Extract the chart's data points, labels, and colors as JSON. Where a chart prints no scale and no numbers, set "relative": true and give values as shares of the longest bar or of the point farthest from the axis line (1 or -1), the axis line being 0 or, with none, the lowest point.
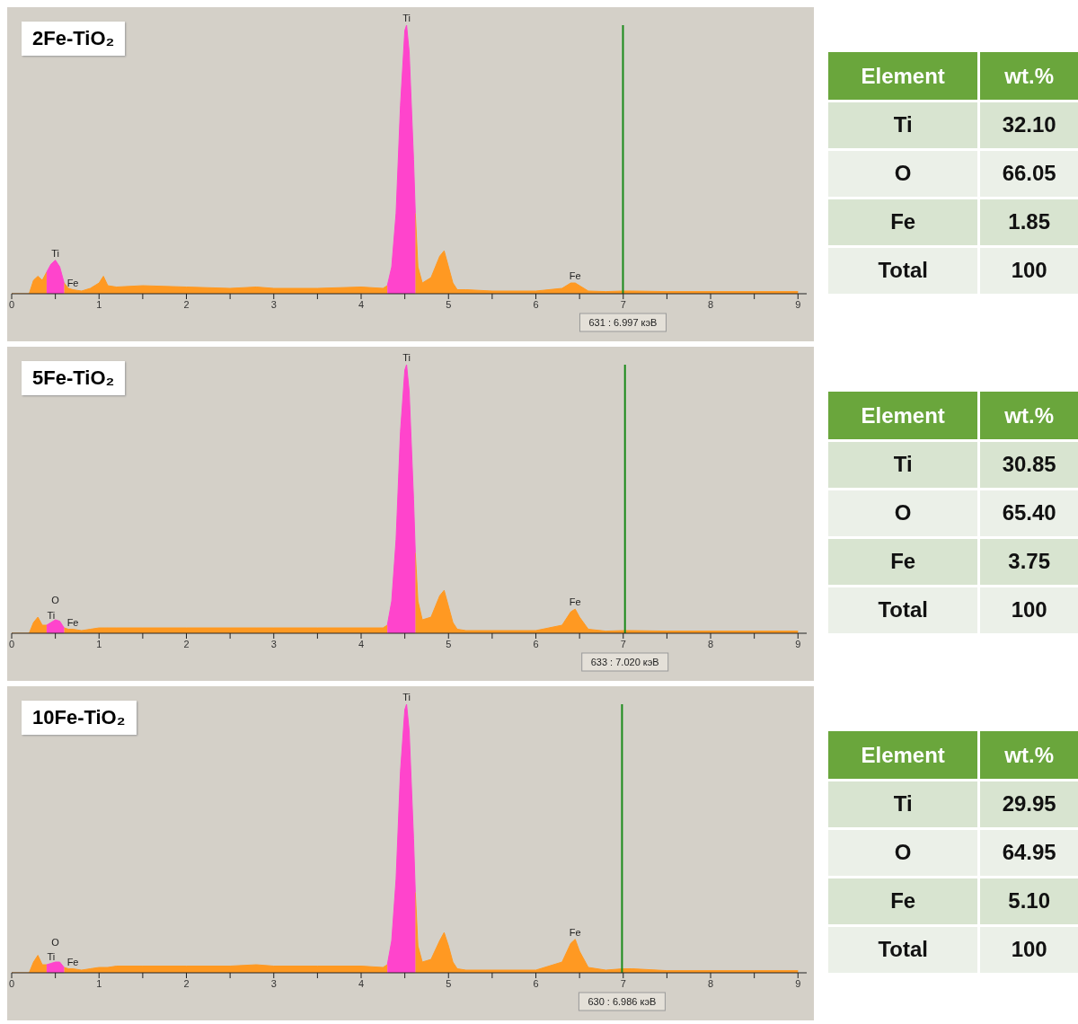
{
  "chart_data": [
    {
      "type": "area",
      "title": "2Fe-TiO₂",
      "relative": true,
      "tick_labels": "x",
      "x": [
        0,
        0.2,
        0.25,
        0.3,
        0.35,
        0.4,
        0.45,
        0.5,
        0.55,
        0.6,
        0.65,
        0.7,
        0.8,
        0.9,
        1.0,
        1.05,
        1.1,
        1.2,
        1.5,
        2,
        2.5,
        2.8,
        3,
        3.5,
        4,
        4.25,
        4.3,
        4.35,
        4.4,
        4.45,
        4.5,
        4.52,
        4.55,
        4.6,
        4.62,
        4.65,
        4.7,
        4.8,
        4.9,
        4.95,
        5.0,
        5.05,
        5.1,
        5.2,
        5.5,
        6,
        6.3,
        6.4,
        6.45,
        6.5,
        6.6,
        6.8,
        7,
        7.1,
        7.5,
        8,
        8.5,
        9
      ],
      "xlim": [
        0,
        9.1
      ],
      "xticks": [
        0,
        {
          "value": 0.5,
          "label": null
        },
        1,
        {
          "value": 1.5,
          "label": null
        },
        2,
        {
          "value": 2.5,
          "label": null
        },
        3,
        {
          "value": 3.5,
          "label": null
        },
        4,
        {
          "value": 4.5,
          "label": null
        },
        5,
        {
          "value": 5.5,
          "label": null
        },
        6,
        {
          "value": 6.5,
          "label": null
        },
        7,
        {
          "value": 7.5,
          "label": null
        },
        8,
        {
          "value": 8.5,
          "label": null
        },
        9
      ],
      "series": [
        {
          "color": "#ff9922",
          "values": [
            0,
            0,
            0.05,
            0.065,
            0.05,
            0.08,
            null,
            null,
            null,
            0.04,
            0.02,
            0.015,
            0.01,
            0.02,
            0.04,
            0.065,
            0.03,
            0.025,
            0.03,
            0.025,
            0.02,
            0.025,
            0.02,
            0.02,
            0.025,
            0.02,
            0.03,
            null,
            null,
            null,
            null,
            null,
            null,
            null,
            0.3,
            0.1,
            0.04,
            0.06,
            0.14,
            0.16,
            0.1,
            0.04,
            0.015,
            0.015,
            0.01,
            0.01,
            0.02,
            0.04,
            0.04,
            0.03,
            0.01,
            0.008,
            0.01,
            0.01,
            0.008,
            0.008,
            0.008,
            0.008
          ]
        },
        {
          "color": "#ff44cc",
          "values": [
            null,
            null,
            null,
            null,
            null,
            0.08,
            0.11,
            0.125,
            0.1,
            0.04,
            null,
            null,
            null,
            null,
            null,
            null,
            null,
            null,
            null,
            null,
            null,
            null,
            null,
            null,
            null,
            null,
            0.03,
            0.1,
            0.3,
            0.7,
            0.98,
            1,
            0.9,
            0.5,
            0.3,
            null,
            null,
            null,
            null,
            null,
            null,
            null,
            null,
            null,
            null,
            null,
            null,
            null,
            null,
            null,
            null,
            null,
            null,
            null,
            null,
            null,
            null,
            null
          ]
        }
      ],
      "annotations": [
        {
          "text": "Ti",
          "x": 4.52,
          "y": 1
        },
        {
          "text": "Ti",
          "x": 0.5,
          "y": 0.125
        },
        {
          "text": "Fe",
          "x": 0.7,
          "y": 0.015
        },
        {
          "text": "Fe",
          "x": 6.45,
          "y": 0.04
        }
      ],
      "ref_lines": [
        {
          "axis": "x",
          "value": 6.997,
          "label": "631 : 6.997 кэВ",
          "color": "#1a8a1a"
        }
      ]
    },
    {
      "type": "other",
      "annotations": [
        "Element",
        "wt.%",
        "Ti",
        "32.10",
        "O",
        "66.05",
        "Fe",
        "1.85",
        "Total",
        "100"
      ]
    },
    {
      "type": "area",
      "title": "5Fe-TiO₂",
      "relative": true,
      "tick_labels": "x",
      "x": [
        0,
        0.2,
        0.25,
        0.3,
        0.35,
        0.4,
        0.45,
        0.5,
        0.55,
        0.6,
        0.65,
        0.7,
        0.8,
        0.9,
        1.0,
        1.05,
        1.1,
        1.2,
        1.5,
        2,
        2.5,
        2.8,
        3,
        3.5,
        4,
        4.25,
        4.3,
        4.35,
        4.4,
        4.45,
        4.5,
        4.52,
        4.55,
        4.6,
        4.62,
        4.65,
        4.7,
        4.8,
        4.9,
        4.95,
        5.0,
        5.05,
        5.1,
        5.2,
        5.5,
        6,
        6.3,
        6.4,
        6.45,
        6.5,
        6.6,
        6.8,
        7,
        7.1,
        7.5,
        8,
        8.5,
        9
      ],
      "xlim": [
        0,
        9.1
      ],
      "xticks": [
        0,
        {
          "value": 0.5,
          "label": null
        },
        1,
        {
          "value": 1.5,
          "label": null
        },
        2,
        {
          "value": 2.5,
          "label": null
        },
        3,
        {
          "value": 3.5,
          "label": null
        },
        4,
        {
          "value": 4.5,
          "label": null
        },
        5,
        {
          "value": 5.5,
          "label": null
        },
        6,
        {
          "value": 6.5,
          "label": null
        },
        7,
        {
          "value": 7.5,
          "label": null
        },
        8,
        {
          "value": 8.5,
          "label": null
        },
        9
      ],
      "series": [
        {
          "color": "#ff9922",
          "values": [
            0,
            0,
            0.04,
            0.06,
            0.03,
            0.03,
            null,
            null,
            null,
            0.02,
            0.015,
            0.015,
            0.01,
            0.015,
            0.02,
            0.02,
            0.02,
            0.02,
            0.02,
            0.02,
            0.02,
            0.02,
            0.02,
            0.02,
            0.02,
            0.02,
            0.03,
            null,
            null,
            null,
            null,
            null,
            null,
            null,
            0.3,
            0.12,
            0.05,
            0.06,
            0.14,
            0.16,
            0.1,
            0.04,
            0.015,
            0.01,
            0.01,
            0.01,
            0.03,
            0.08,
            0.09,
            0.06,
            0.015,
            0.008,
            0.01,
            0.01,
            0.008,
            0.008,
            0.008,
            0.008
          ]
        },
        {
          "color": "#ff44cc",
          "values": [
            null,
            null,
            null,
            null,
            null,
            0.03,
            0.04,
            0.05,
            0.045,
            0.02,
            null,
            null,
            null,
            null,
            null,
            null,
            null,
            null,
            null,
            null,
            null,
            null,
            null,
            null,
            null,
            null,
            0.03,
            0.12,
            0.35,
            0.75,
            0.98,
            1,
            0.9,
            0.5,
            0.3,
            null,
            null,
            null,
            null,
            null,
            null,
            null,
            null,
            null,
            null,
            null,
            null,
            null,
            null,
            null,
            null,
            null,
            null,
            null,
            null,
            null,
            null,
            null
          ]
        }
      ],
      "annotations": [
        {
          "text": "Ti",
          "x": 4.52,
          "y": 1
        },
        {
          "text": "Ti",
          "x": 0.45,
          "y": 0.04
        },
        {
          "text": "O",
          "x": 0.5,
          "y": 0.05
        },
        {
          "text": "Fe",
          "x": 0.7,
          "y": 0.015
        },
        {
          "text": "Fe",
          "x": 6.45,
          "y": 0.09
        }
      ],
      "ref_lines": [
        {
          "axis": "x",
          "value": 7.02,
          "label": "633 : 7.020 кэВ",
          "color": "#1a8a1a"
        }
      ]
    },
    {
      "type": "other",
      "annotations": [
        "Element",
        "wt.%",
        "Ti",
        "30.85",
        "O",
        "65.40",
        "Fe",
        "3.75",
        "Total",
        "100"
      ]
    },
    {
      "type": "area",
      "title": "10Fe-TiO₂",
      "relative": true,
      "tick_labels": "x",
      "x": [
        0,
        0.2,
        0.25,
        0.3,
        0.35,
        0.4,
        0.45,
        0.5,
        0.55,
        0.6,
        0.65,
        0.7,
        0.8,
        0.9,
        1.0,
        1.05,
        1.1,
        1.2,
        1.5,
        2,
        2.5,
        2.8,
        3,
        3.5,
        4,
        4.25,
        4.3,
        4.35,
        4.4,
        4.45,
        4.5,
        4.52,
        4.55,
        4.6,
        4.62,
        4.65,
        4.7,
        4.8,
        4.9,
        4.95,
        5.0,
        5.05,
        5.1,
        5.2,
        5.5,
        6,
        6.3,
        6.4,
        6.45,
        6.5,
        6.6,
        6.8,
        7,
        7.1,
        7.5,
        8,
        8.5,
        9
      ],
      "xlim": [
        0,
        9.1
      ],
      "xticks": [
        0,
        {
          "value": 0.5,
          "label": null
        },
        1,
        {
          "value": 1.5,
          "label": null
        },
        2,
        {
          "value": 2.5,
          "label": null
        },
        3,
        {
          "value": 3.5,
          "label": null
        },
        4,
        {
          "value": 4.5,
          "label": null
        },
        5,
        {
          "value": 5.5,
          "label": null
        },
        6,
        {
          "value": 6.5,
          "label": null
        },
        7,
        {
          "value": 7.5,
          "label": null
        },
        8,
        {
          "value": 8.5,
          "label": null
        },
        9
      ],
      "series": [
        {
          "color": "#ff9922",
          "values": [
            0,
            0,
            0.04,
            0.065,
            0.03,
            0.03,
            null,
            null,
            null,
            0.02,
            0.015,
            0.015,
            0.01,
            0.015,
            0.02,
            0.02,
            0.02,
            0.025,
            0.025,
            0.025,
            0.025,
            0.03,
            0.025,
            0.025,
            0.025,
            0.02,
            0.03,
            null,
            null,
            null,
            null,
            null,
            null,
            null,
            0.3,
            0.1,
            0.04,
            0.05,
            0.12,
            0.15,
            0.1,
            0.04,
            0.015,
            0.01,
            0.01,
            0.01,
            0.04,
            0.11,
            0.125,
            0.08,
            0.02,
            0.01,
            0.015,
            0.015,
            0.008,
            0.008,
            0.008,
            0.008
          ]
        },
        {
          "color": "#ff44cc",
          "values": [
            null,
            null,
            null,
            null,
            null,
            0.03,
            0.035,
            0.04,
            0.04,
            0.02,
            null,
            null,
            null,
            null,
            null,
            null,
            null,
            null,
            null,
            null,
            null,
            null,
            null,
            null,
            null,
            null,
            0.03,
            0.12,
            0.35,
            0.75,
            0.98,
            1,
            0.9,
            0.5,
            0.3,
            null,
            null,
            null,
            null,
            null,
            null,
            null,
            null,
            null,
            null,
            null,
            null,
            null,
            null,
            null,
            null,
            null,
            null,
            null,
            null,
            null,
            null,
            null
          ]
        }
      ],
      "annotations": [
        {
          "text": "Ti",
          "x": 4.52,
          "y": 1
        },
        {
          "text": "Ti",
          "x": 0.45,
          "y": 0.035
        },
        {
          "text": "O",
          "x": 0.5,
          "y": 0.04
        },
        {
          "text": "Fe",
          "x": 0.7,
          "y": 0.015
        },
        {
          "text": "Fe",
          "x": 6.45,
          "y": 0.125
        }
      ],
      "ref_lines": [
        {
          "axis": "x",
          "value": 6.986,
          "label": "630 : 6.986 кэВ",
          "color": "#1a8a1a"
        }
      ]
    },
    {
      "type": "other",
      "annotations": [
        "Element",
        "wt.%",
        "Ti",
        "29.95",
        "O",
        "64.95",
        "Fe",
        "5.10",
        "Total",
        "100"
      ]
    }
  ]
}
